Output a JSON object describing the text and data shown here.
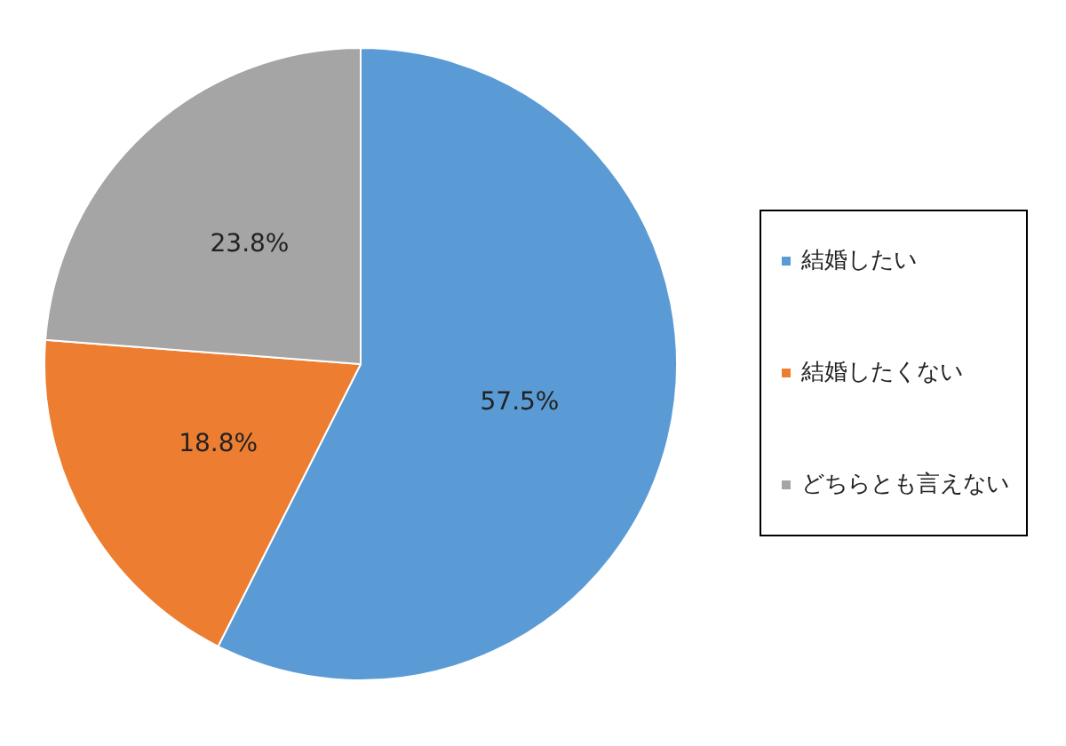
{
  "chart_data": {
    "type": "pie",
    "categories": [
      "結婚したい",
      "結婚したくない",
      "どちらとも言えない"
    ],
    "values": [
      57.5,
      18.8,
      23.8
    ],
    "colors": [
      "#5b9bd5",
      "#ed7d31",
      "#a5a5a5"
    ],
    "value_labels": [
      "57.5%",
      "18.8%",
      "23.8%"
    ],
    "legend": "right"
  }
}
